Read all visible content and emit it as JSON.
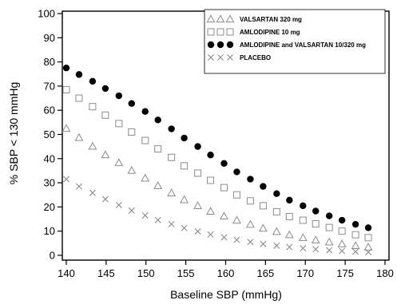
{
  "chart_data": {
    "type": "scatter",
    "title": "",
    "xlabel": "Baseline SBP (mmHg)",
    "ylabel": "% SBP < 130 mmHg",
    "xlim": [
      139.5,
      180.5
    ],
    "ylim": [
      -2,
      101
    ],
    "x_ticks": [
      140,
      145,
      150,
      155,
      160,
      165,
      170,
      175,
      180
    ],
    "y_ticks": [
      0,
      10,
      20,
      30,
      40,
      50,
      60,
      70,
      80,
      90,
      100
    ],
    "grid": false,
    "legend_position": "top-right",
    "x": [
      140,
      141.6,
      143.3,
      144.9,
      146.6,
      148.2,
      149.9,
      151.5,
      153.2,
      154.8,
      156.5,
      158.1,
      159.8,
      161.4,
      163.1,
      164.7,
      166.4,
      168.0,
      169.7,
      171.3,
      173.0,
      174.6,
      176.3,
      177.9
    ],
    "series": [
      {
        "name": "VALSARTAN 320 mg",
        "marker": "triangle-open",
        "color": "#8c8c8c",
        "values": [
          52.5,
          48.7,
          45.1,
          41.6,
          38.3,
          35.1,
          31.9,
          28.8,
          25.8,
          23.0,
          20.5,
          18.2,
          16.2,
          14.5,
          12.8,
          11.2,
          9.8,
          8.5,
          7.3,
          6.3,
          5.5,
          4.7,
          4.0,
          3.4
        ]
      },
      {
        "name": "AMLODIPINE  10 mg",
        "marker": "square-open",
        "color": "#8c8c8c",
        "values": [
          68.5,
          65.0,
          61.5,
          58.0,
          54.5,
          51.0,
          47.5,
          44.0,
          40.5,
          37.0,
          34.0,
          31.0,
          28.0,
          25.0,
          22.5,
          20.5,
          18.0,
          16.0,
          14.5,
          13.0,
          11.5,
          10.0,
          8.5,
          7.3
        ]
      },
      {
        "name": "AMLODIPINE and VALSARTAN 10/320 mg",
        "marker": "circle-filled",
        "color": "#000000",
        "values": [
          77.5,
          74.8,
          72.0,
          69.0,
          66.0,
          62.8,
          59.5,
          56.0,
          52.3,
          48.5,
          45.0,
          41.5,
          38.0,
          34.5,
          31.5,
          28.5,
          25.5,
          22.8,
          20.5,
          18.3,
          16.3,
          14.5,
          12.8,
          11.4
        ]
      },
      {
        "name": "PLACEBO",
        "marker": "x",
        "color": "#8c8c8c",
        "values": [
          31.5,
          28.5,
          25.8,
          23.2,
          20.8,
          18.5,
          16.5,
          14.6,
          12.9,
          11.3,
          9.9,
          8.6,
          7.4,
          6.4,
          5.5,
          4.7,
          4.0,
          3.4,
          2.9,
          2.5,
          2.1,
          1.8,
          1.5,
          1.3
        ]
      }
    ]
  }
}
